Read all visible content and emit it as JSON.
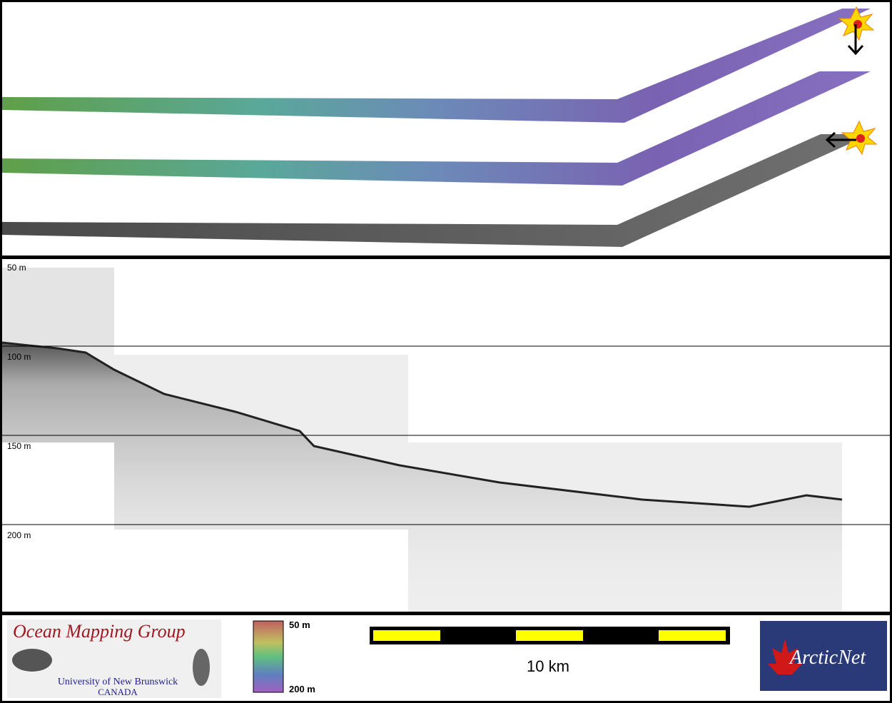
{
  "profile": {
    "depth_labels": [
      "50 m",
      "100 m",
      "150 m",
      "200 m"
    ]
  },
  "colorbar": {
    "top_label": "50 m",
    "bottom_label": "200 m"
  },
  "scale_bar": {
    "label": "10 km"
  },
  "logos": {
    "omg_title": "Ocean Mapping Group",
    "omg_university": "University of New Brunswick",
    "omg_country": "CANADA",
    "arcticnet": "ArcticNet"
  }
}
